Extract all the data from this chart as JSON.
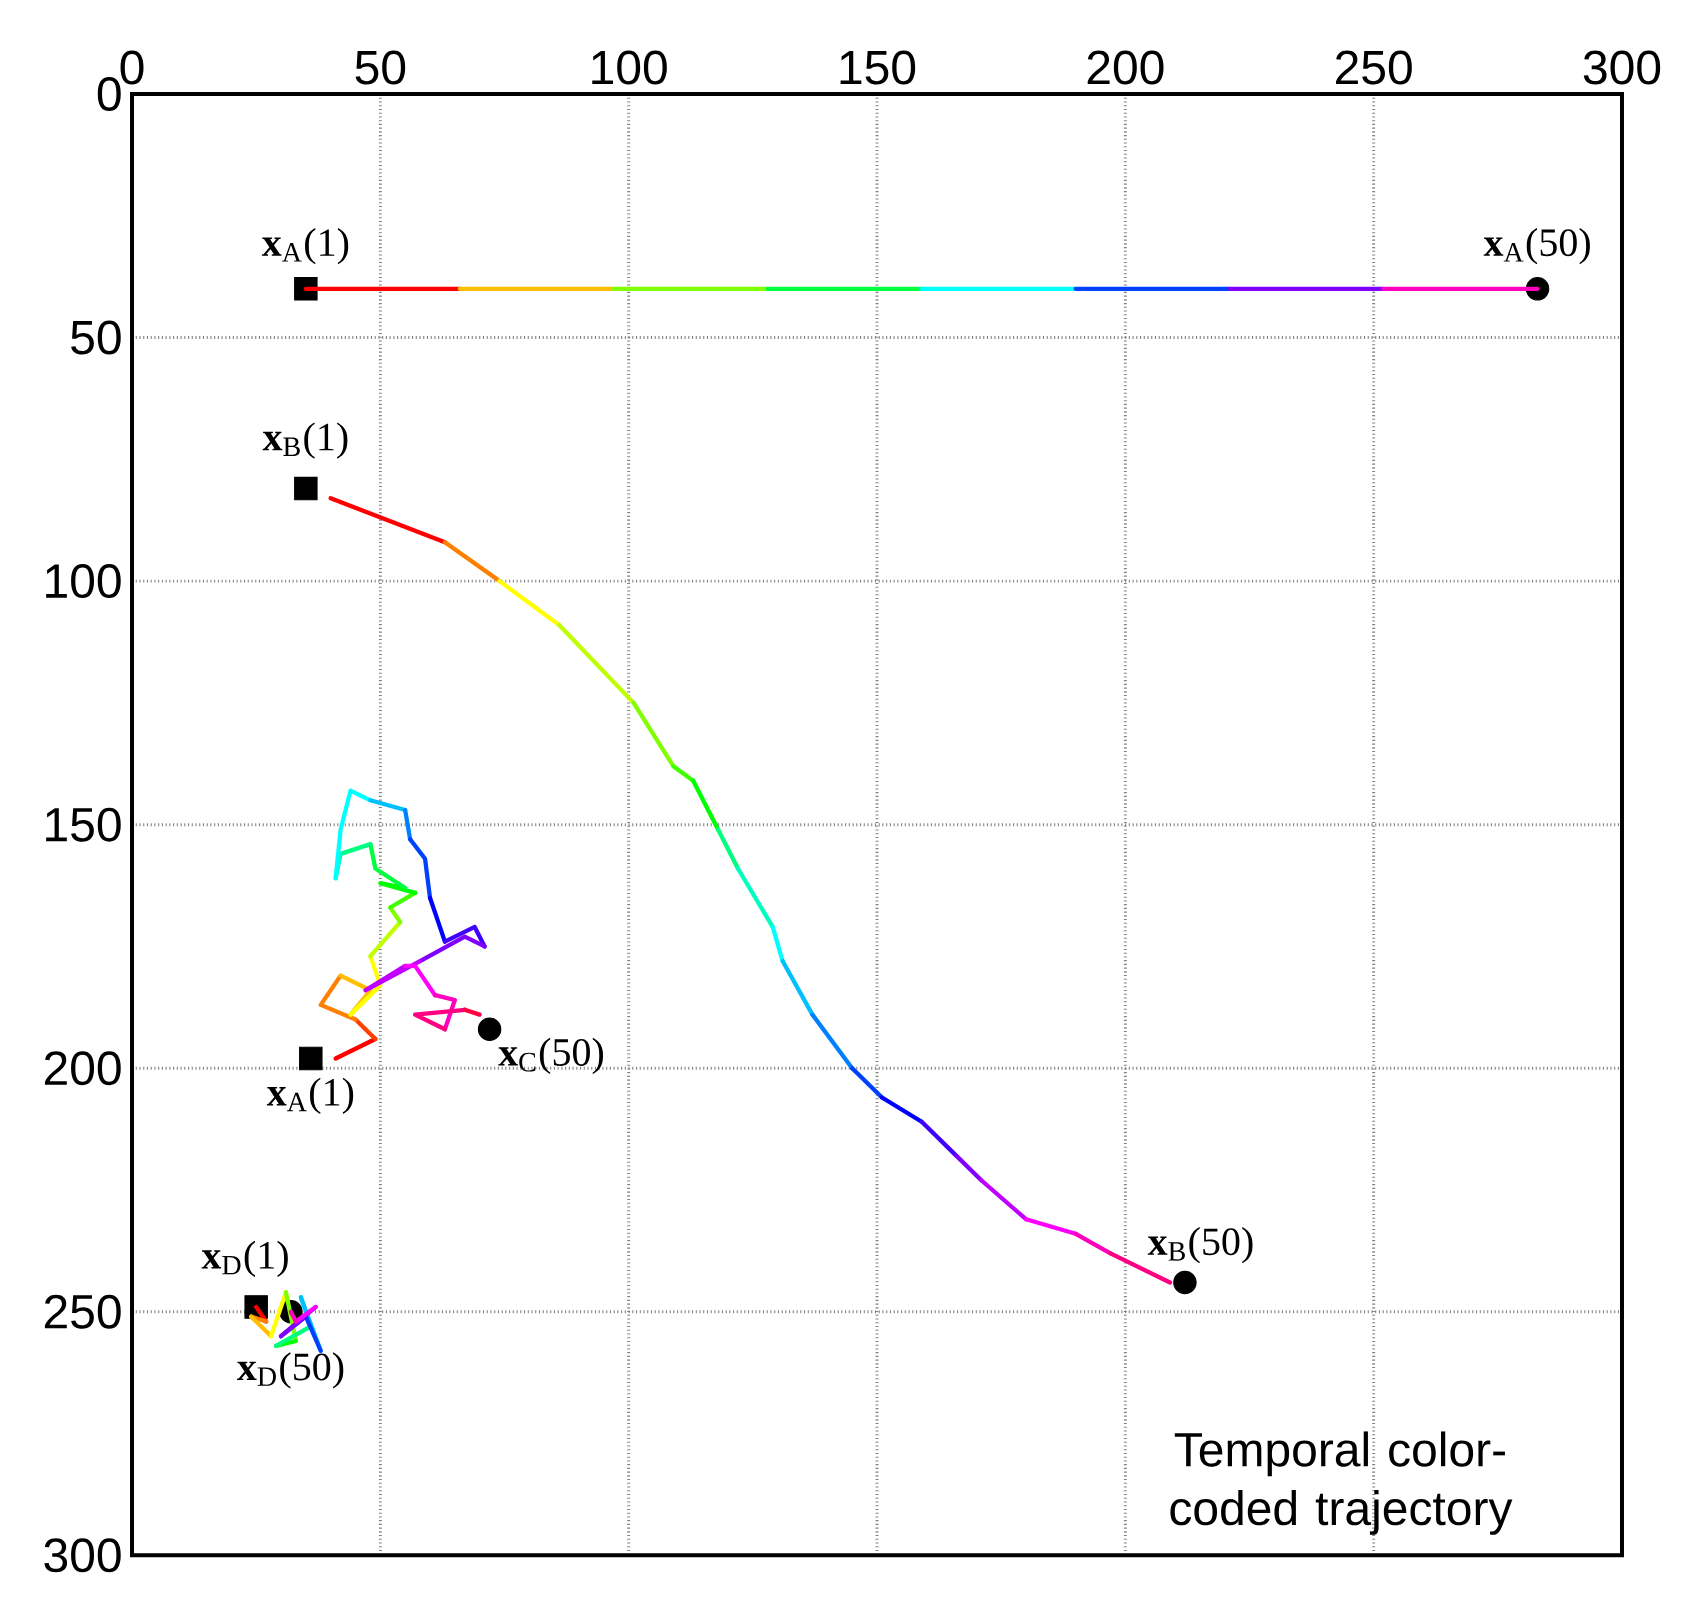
{
  "chart_data": {
    "type": "line",
    "xlim": [
      0,
      300
    ],
    "ylim": [
      300,
      0
    ],
    "xticks": [
      0,
      50,
      100,
      150,
      200,
      250,
      300
    ],
    "yticks": [
      0,
      50,
      100,
      150,
      200,
      250,
      300
    ],
    "grid": true,
    "series": [
      {
        "x": [
          35,
          66
        ],
        "values": [
          40,
          40
        ],
        "color": "#ff0000"
      },
      {
        "x": [
          66,
          97
        ],
        "values": [
          40,
          40
        ],
        "color": "#ffbf00"
      },
      {
        "x": [
          97,
          128
        ],
        "values": [
          40,
          40
        ],
        "color": "#80ff00"
      },
      {
        "x": [
          128,
          159
        ],
        "values": [
          40,
          40
        ],
        "color": "#00ff40"
      },
      {
        "x": [
          159,
          190
        ],
        "values": [
          40,
          40
        ],
        "color": "#00ffff"
      },
      {
        "x": [
          190,
          221
        ],
        "values": [
          40,
          40
        ],
        "color": "#0040ff"
      },
      {
        "x": [
          221,
          252
        ],
        "values": [
          40,
          40
        ],
        "color": "#8000ff"
      },
      {
        "x": [
          252,
          283
        ],
        "values": [
          40,
          40
        ],
        "color": "#ff00bf"
      },
      {
        "x": [
          40,
          63
        ],
        "values": [
          83,
          92
        ],
        "color": "#ff0000"
      },
      {
        "x": [
          63,
          74
        ],
        "values": [
          92,
          100
        ],
        "color": "#ff8000"
      },
      {
        "x": [
          74,
          86
        ],
        "values": [
          100,
          109
        ],
        "color": "#ffff00"
      },
      {
        "x": [
          86,
          101
        ],
        "values": [
          109,
          125
        ],
        "color": "#bfff00"
      },
      {
        "x": [
          101,
          109
        ],
        "values": [
          125,
          138
        ],
        "color": "#80ff00"
      },
      {
        "x": [
          109,
          113
        ],
        "values": [
          138,
          141
        ],
        "color": "#40ff00"
      },
      {
        "x": [
          113,
          118
        ],
        "values": [
          141,
          151
        ],
        "color": "#00ff00"
      },
      {
        "x": [
          118,
          122
        ],
        "values": [
          151,
          159
        ],
        "color": "#00ff80"
      },
      {
        "x": [
          122,
          129
        ],
        "values": [
          159,
          171
        ],
        "color": "#00ffbf"
      },
      {
        "x": [
          129,
          131
        ],
        "values": [
          171,
          178
        ],
        "color": "#00ffff"
      },
      {
        "x": [
          131,
          137
        ],
        "values": [
          178,
          189
        ],
        "color": "#00bfff"
      },
      {
        "x": [
          137,
          145
        ],
        "values": [
          189,
          200
        ],
        "color": "#0080ff"
      },
      {
        "x": [
          145,
          151
        ],
        "values": [
          200,
          206
        ],
        "color": "#0040ff"
      },
      {
        "x": [
          151,
          159
        ],
        "values": [
          206,
          211
        ],
        "color": "#0000ff"
      },
      {
        "x": [
          159,
          166
        ],
        "values": [
          211,
          218
        ],
        "color": "#4000ff"
      },
      {
        "x": [
          166,
          171
        ],
        "values": [
          218,
          223
        ],
        "color": "#8000ff"
      },
      {
        "x": [
          171,
          180
        ],
        "values": [
          223,
          231
        ],
        "color": "#bf00ff"
      },
      {
        "x": [
          180,
          190
        ],
        "values": [
          231,
          234
        ],
        "color": "#ff00ff"
      },
      {
        "x": [
          190,
          197
        ],
        "values": [
          234,
          238
        ],
        "color": "#ff00bf"
      },
      {
        "x": [
          197,
          209
        ],
        "values": [
          238,
          244
        ],
        "color": "#ff0080"
      },
      {
        "x": [
          41,
          49
        ],
        "values": [
          198,
          194
        ],
        "color": "#ff0000"
      },
      {
        "x": [
          49,
          45
        ],
        "values": [
          194,
          190
        ],
        "color": "#ff4000"
      },
      {
        "x": [
          45,
          38,
          42
        ],
        "values": [
          190,
          187,
          181
        ],
        "color": "#ff8000"
      },
      {
        "x": [
          42,
          48,
          44
        ],
        "values": [
          181,
          184,
          189
        ],
        "color": "#ffbf00"
      },
      {
        "x": [
          44,
          50,
          48
        ],
        "values": [
          189,
          183,
          177
        ],
        "color": "#ffff00"
      },
      {
        "x": [
          48,
          54
        ],
        "values": [
          177,
          170
        ],
        "color": "#bfff00"
      },
      {
        "x": [
          54,
          52
        ],
        "values": [
          170,
          167
        ],
        "color": "#80ff00"
      },
      {
        "x": [
          52,
          57
        ],
        "values": [
          167,
          164
        ],
        "color": "#40ff00"
      },
      {
        "x": [
          57,
          50,
          55
        ],
        "values": [
          164,
          162,
          163
        ],
        "color": "#00ff00"
      },
      {
        "x": [
          55,
          49,
          48
        ],
        "values": [
          163,
          159,
          154
        ],
        "color": "#00ff40"
      },
      {
        "x": [
          48,
          42
        ],
        "values": [
          154,
          156
        ],
        "color": "#00ff80"
      },
      {
        "x": [
          42,
          41
        ],
        "values": [
          156,
          161
        ],
        "color": "#00ffbf"
      },
      {
        "x": [
          41,
          42,
          44,
          48
        ],
        "values": [
          161,
          151,
          143,
          145
        ],
        "color": "#00ffff"
      },
      {
        "x": [
          48,
          55
        ],
        "values": [
          145,
          147
        ],
        "color": "#00bfff"
      },
      {
        "x": [
          55,
          56
        ],
        "values": [
          147,
          153
        ],
        "color": "#0080ff"
      },
      {
        "x": [
          56,
          59,
          60
        ],
        "values": [
          153,
          157,
          165
        ],
        "color": "#0040ff"
      },
      {
        "x": [
          60,
          63
        ],
        "values": [
          165,
          174
        ],
        "color": "#0000ff"
      },
      {
        "x": [
          63,
          69,
          71
        ],
        "values": [
          174,
          171,
          175
        ],
        "color": "#4000ff"
      },
      {
        "x": [
          71,
          67,
          58
        ],
        "values": [
          175,
          173,
          178
        ],
        "color": "#8000ff"
      },
      {
        "x": [
          58,
          47,
          55
        ],
        "values": [
          178,
          184,
          179
        ],
        "color": "#bf00ff"
      },
      {
        "x": [
          55,
          57,
          61
        ],
        "values": [
          179,
          179,
          185
        ],
        "color": "#ff00ff"
      },
      {
        "x": [
          61,
          65,
          63
        ],
        "values": [
          185,
          186,
          192
        ],
        "color": "#ff00bf"
      },
      {
        "x": [
          63,
          57,
          67
        ],
        "values": [
          192,
          189,
          188
        ],
        "color": "#ff0080"
      },
      {
        "x": [
          67,
          70
        ],
        "values": [
          188,
          189
        ],
        "color": "#ff0040"
      },
      {
        "x": [
          25,
          27
        ],
        "values": [
          249,
          252
        ],
        "color": "#ff0000"
      },
      {
        "x": [
          27,
          24
        ],
        "values": [
          252,
          251
        ],
        "color": "#ff8000"
      },
      {
        "x": [
          24,
          28
        ],
        "values": [
          251,
          255
        ],
        "color": "#ffbf00"
      },
      {
        "x": [
          28,
          31
        ],
        "values": [
          255,
          246
        ],
        "color": "#ffff00"
      },
      {
        "x": [
          31,
          33
        ],
        "values": [
          246,
          256
        ],
        "color": "#80ff00"
      },
      {
        "x": [
          33,
          29
        ],
        "values": [
          256,
          257
        ],
        "color": "#00ff00"
      },
      {
        "x": [
          29,
          36
        ],
        "values": [
          257,
          253
        ],
        "color": "#00ff80"
      },
      {
        "x": [
          36,
          34
        ],
        "values": [
          253,
          247
        ],
        "color": "#00ffff"
      },
      {
        "x": [
          34,
          38
        ],
        "values": [
          247,
          258
        ],
        "color": "#00bfff"
      },
      {
        "x": [
          38,
          35
        ],
        "values": [
          258,
          251
        ],
        "color": "#0040ff"
      },
      {
        "x": [
          35,
          30
        ],
        "values": [
          251,
          255
        ],
        "color": "#4000ff"
      },
      {
        "x": [
          30,
          37
        ],
        "values": [
          255,
          249
        ],
        "color": "#8000ff"
      },
      {
        "x": [
          37,
          33
        ],
        "values": [
          249,
          252
        ],
        "color": "#ff00ff"
      },
      {
        "x": [
          33,
          32
        ],
        "values": [
          252,
          250
        ],
        "color": "#ff00bf"
      },
      {
        "type": "scatter",
        "marker": "square",
        "color": "#000000",
        "x": [
          35,
          35,
          36,
          25
        ],
        "values": [
          40,
          81,
          198,
          249
        ]
      },
      {
        "type": "scatter",
        "marker": "circle",
        "color": "#000000",
        "x": [
          283,
          212,
          72,
          32
        ],
        "values": [
          40,
          244,
          192,
          250
        ]
      }
    ],
    "annotations": [
      {
        "text": "**x**$_{A}$(1)",
        "x": 35,
        "y": 40
      },
      {
        "text": "**x**$_{A}$(50)",
        "x": 283,
        "y": 40
      },
      {
        "text": "**x**$_{B}$(1)",
        "x": 35,
        "y": 81
      },
      {
        "text": "**x**$_{A}$(1)",
        "x": 36,
        "y": 198
      },
      {
        "text": "**x**$_{C}$(50)",
        "x": 72,
        "y": 192
      },
      {
        "text": "**x**$_{B}$(50)",
        "x": 212,
        "y": 244
      },
      {
        "text": "**x**$_{D}$(1)",
        "x": 25,
        "y": 249
      },
      {
        "text": "**x**$_{D}$(50)",
        "x": 32,
        "y": 250
      },
      "Temporal color-coded trajectory"
    ]
  }
}
